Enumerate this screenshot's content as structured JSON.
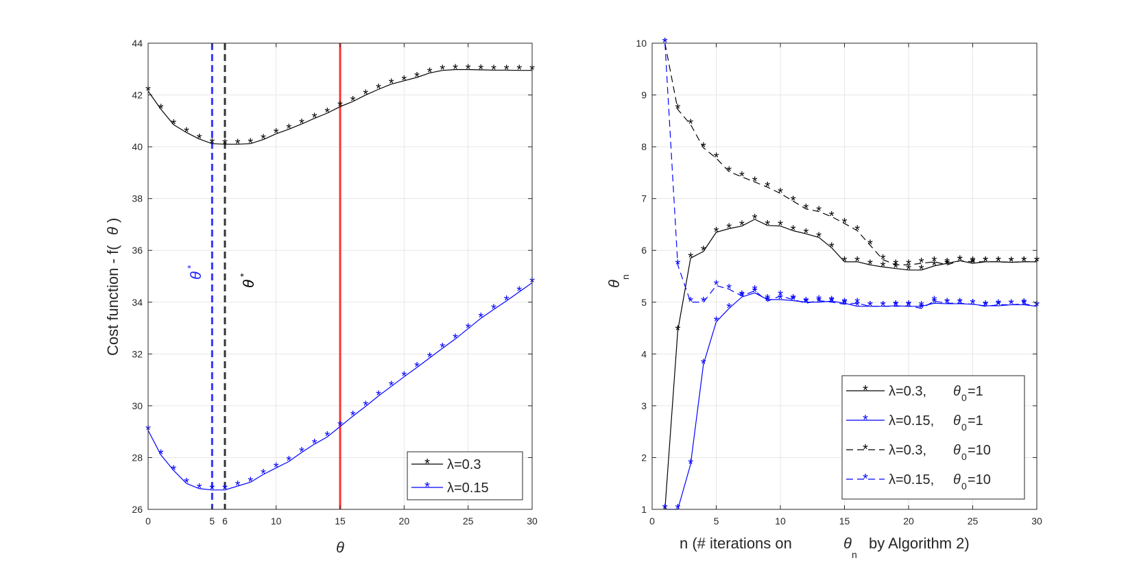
{
  "chart_data": [
    {
      "type": "line",
      "xlabel": "θ",
      "ylabel": "Cost function - f(θ)",
      "xlim": [
        0,
        30
      ],
      "ylim": [
        26,
        44
      ],
      "xticks": [
        "0",
        "5",
        "6",
        "10",
        "15",
        "20",
        "25",
        "30"
      ],
      "yticks": [
        "26",
        "28",
        "30",
        "32",
        "34",
        "36",
        "38",
        "40",
        "42",
        "44"
      ],
      "x": [
        0,
        1,
        2,
        3,
        4,
        5,
        6,
        7,
        8,
        9,
        10,
        11,
        12,
        13,
        14,
        15,
        16,
        17,
        18,
        19,
        20,
        21,
        22,
        23,
        24,
        25,
        26,
        27,
        28,
        29,
        30
      ],
      "series": [
        {
          "name": "λ=0.3",
          "color": "#000000",
          "style": "solid",
          "marker": "*",
          "values": [
            42.15,
            41.45,
            40.85,
            40.55,
            40.3,
            40.12,
            40.1,
            40.1,
            40.12,
            40.28,
            40.5,
            40.68,
            40.88,
            41.1,
            41.3,
            41.55,
            41.75,
            42.0,
            42.22,
            42.42,
            42.55,
            42.68,
            42.85,
            42.95,
            42.98,
            42.98,
            42.97,
            42.96,
            42.96,
            42.95,
            42.95
          ]
        },
        {
          "name": "λ=0.15",
          "color": "#0000ff",
          "style": "solid",
          "marker": "*",
          "values": [
            29.05,
            28.1,
            27.5,
            27.0,
            26.8,
            26.75,
            26.75,
            26.9,
            27.05,
            27.35,
            27.6,
            27.85,
            28.2,
            28.52,
            28.8,
            29.2,
            29.6,
            29.98,
            30.38,
            30.75,
            31.12,
            31.48,
            31.85,
            32.22,
            32.58,
            32.98,
            33.38,
            33.72,
            34.05,
            34.4,
            34.75
          ]
        }
      ],
      "vlines": [
        {
          "x": 5,
          "color": "#3333ff",
          "style": "dashed",
          "label": "θ*"
        },
        {
          "x": 6,
          "color": "#333333",
          "style": "dashed",
          "label": "θ*"
        },
        {
          "x": 15,
          "color": "#ff3333",
          "style": "solid"
        }
      ],
      "legend": {
        "position": "bottom-right",
        "entries": [
          "λ=0.3",
          "λ=0.15"
        ]
      }
    },
    {
      "type": "line",
      "xlabel": "n (# iterations on θn by Algorithm 2)",
      "ylabel": "θn",
      "xlim": [
        0,
        30
      ],
      "ylim": [
        1,
        10
      ],
      "xticks": [
        "0",
        "5",
        "10",
        "15",
        "20",
        "25",
        "30"
      ],
      "yticks": [
        "1",
        "2",
        "3",
        "4",
        "5",
        "6",
        "7",
        "8",
        "9",
        "10"
      ],
      "x": [
        1,
        2,
        3,
        4,
        5,
        6,
        7,
        8,
        9,
        10,
        11,
        12,
        13,
        14,
        15,
        16,
        17,
        18,
        19,
        20,
        21,
        22,
        23,
        24,
        25,
        26,
        27,
        28,
        29,
        30
      ],
      "series": [
        {
          "name": "λ=0.3, θ0=1",
          "color": "#000000",
          "style": "solid",
          "marker": "*",
          "values": [
            1.0,
            4.45,
            5.85,
            5.98,
            6.35,
            6.42,
            6.47,
            6.6,
            6.48,
            6.47,
            6.38,
            6.32,
            6.25,
            6.05,
            5.78,
            5.78,
            5.72,
            5.68,
            5.65,
            5.62,
            5.62,
            5.7,
            5.75,
            5.8,
            5.75,
            5.78,
            5.78,
            5.77,
            5.78,
            5.78
          ]
        },
        {
          "name": "λ=0.15, θ0=1",
          "color": "#0000ff",
          "style": "solid",
          "marker": "*",
          "values": [
            1.0,
            1.0,
            1.87,
            3.8,
            4.62,
            4.88,
            5.1,
            5.18,
            5.05,
            5.05,
            5.03,
            5.0,
            5.0,
            5.02,
            4.98,
            4.92,
            4.92,
            4.92,
            4.93,
            4.92,
            4.92,
            4.98,
            4.97,
            4.97,
            4.96,
            4.93,
            4.93,
            4.95,
            4.95,
            4.92
          ]
        },
        {
          "name": "λ=0.3, θ0=10",
          "color": "#000000",
          "style": "dashed",
          "marker": "*",
          "values": [
            10.0,
            8.72,
            8.43,
            7.98,
            7.78,
            7.52,
            7.42,
            7.32,
            7.22,
            7.1,
            6.95,
            6.8,
            6.75,
            6.65,
            6.52,
            6.38,
            6.1,
            5.82,
            5.72,
            5.72,
            5.75,
            5.78,
            5.72,
            5.8,
            5.78,
            5.78,
            5.78,
            5.77,
            5.78,
            5.78
          ]
        },
        {
          "name": "λ=0.15, θ0=10",
          "color": "#0000ff",
          "style": "dashed",
          "marker": "*",
          "values": [
            10.0,
            5.72,
            5.0,
            5.0,
            5.32,
            5.25,
            5.12,
            5.22,
            5.02,
            5.12,
            5.05,
            4.98,
            5.03,
            5.0,
            4.96,
            4.98,
            4.92,
            4.92,
            4.92,
            4.93,
            4.88,
            5.02,
            4.98,
            4.98,
            4.96,
            4.92,
            4.95,
            4.95,
            4.97,
            4.92
          ]
        }
      ],
      "legend": {
        "position": "bottom-right",
        "entries": [
          "λ=0.3, θ0=1",
          "λ=0.15, θ0=1",
          "λ=0.3, θ0=10",
          "λ=0.15, θ0=10"
        ]
      }
    }
  ],
  "text": {
    "left_xlabel": "θ",
    "left_ylabel_main": "Cost function - f(",
    "left_ylabel_theta": "θ",
    "left_ylabel_close": ")",
    "theta": "θ",
    "star": "*",
    "right_ylabel_theta": "θ",
    "right_ylabel_sub": "n",
    "right_xlabel_a": "n (# iterations on",
    "right_xlabel_theta": "θ",
    "right_xlabel_sub": "n",
    "right_xlabel_b": "by Algorithm 2)",
    "leg_l1": "λ=0.3",
    "leg_l2": "λ=0.15",
    "leg_r1_lam": "λ=0.3,",
    "leg_r2_lam": "λ=0.15,",
    "leg_r3_lam": "λ=0.3,",
    "leg_r4_lam": "λ=0.15,",
    "leg_r_theta": "θ",
    "leg_r_sub": "0",
    "leg_r1_val": "=1",
    "leg_r2_val": "=1",
    "leg_r3_val": "=10",
    "leg_r4_val": "=10"
  }
}
